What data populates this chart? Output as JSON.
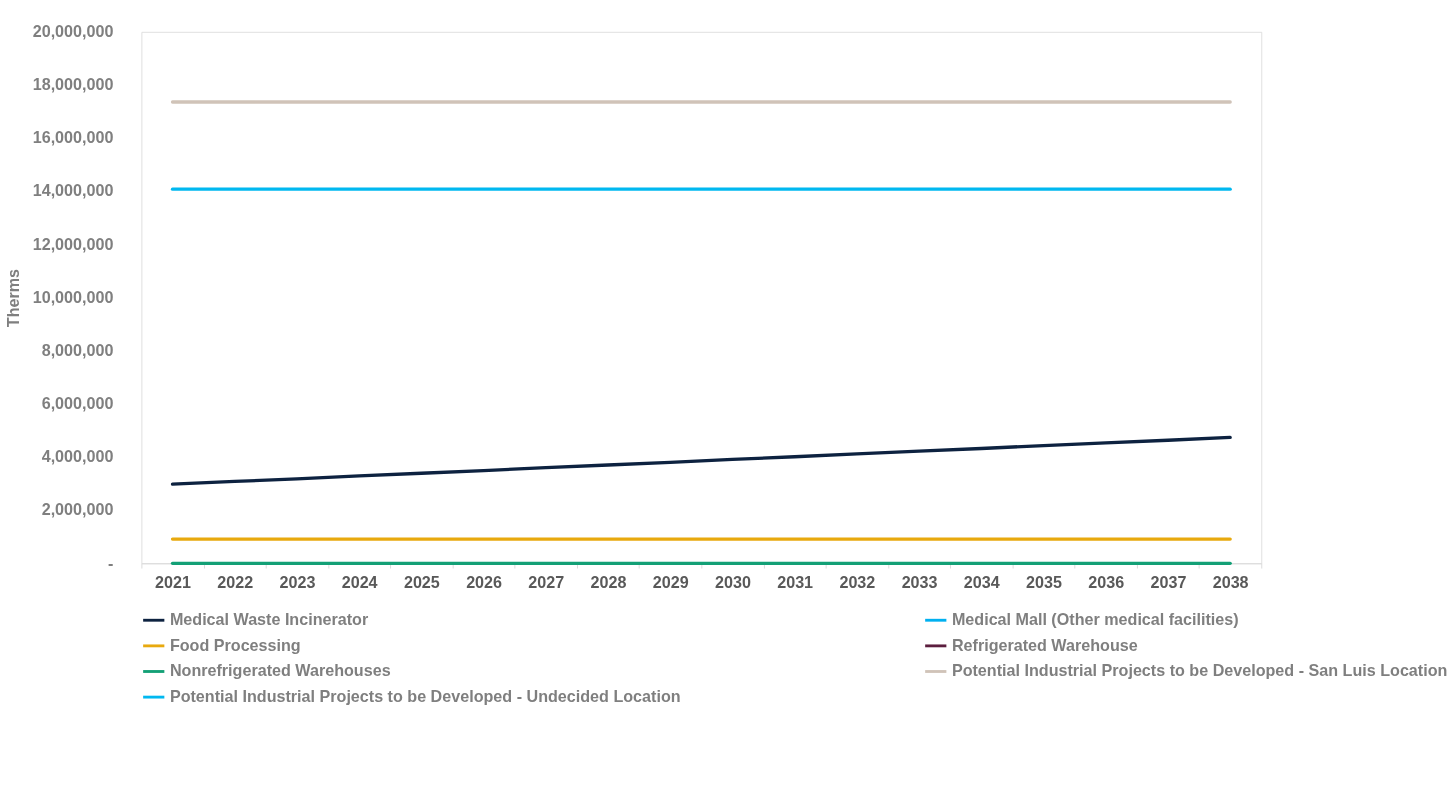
{
  "chart_data": {
    "type": "line",
    "ylabel": "Therms",
    "categories": [
      "2021",
      "2022",
      "2023",
      "2024",
      "2025",
      "2026",
      "2027",
      "2028",
      "2029",
      "2030",
      "2031",
      "2032",
      "2033",
      "2034",
      "2035",
      "2036",
      "2037",
      "2038"
    ],
    "ylim": [
      0,
      20000000
    ],
    "yticks": [
      {
        "value": 0,
        "label": "-"
      },
      {
        "value": 2000000,
        "label": "2,000,000"
      },
      {
        "value": 4000000,
        "label": "4,000,000"
      },
      {
        "value": 6000000,
        "label": "6,000,000"
      },
      {
        "value": 8000000,
        "label": "8,000,000"
      },
      {
        "value": 10000000,
        "label": "10,000,000"
      },
      {
        "value": 12000000,
        "label": "12,000,000"
      },
      {
        "value": 14000000,
        "label": "14,000,000"
      },
      {
        "value": 16000000,
        "label": "16,000,000"
      },
      {
        "value": 18000000,
        "label": "18,000,000"
      },
      {
        "value": 20000000,
        "label": "20,000,000"
      }
    ],
    "grid": false,
    "legend": "bottom",
    "marker": "none",
    "line_style": "solid",
    "series": [
      {
        "name": "Medical Waste Incinerator",
        "color": "#0d2240",
        "values": [
          2980000,
          3080000,
          3180000,
          3290000,
          3390000,
          3490000,
          3600000,
          3700000,
          3800000,
          3910000,
          4010000,
          4120000,
          4220000,
          4320000,
          4430000,
          4530000,
          4630000,
          4740000
        ]
      },
      {
        "name": "Medical Mall (Other medical facilities)",
        "color": "#00b0f0",
        "values": [
          null,
          null,
          null,
          null,
          null,
          null,
          null,
          null,
          null,
          null,
          null,
          null,
          null,
          null,
          null,
          null,
          null,
          null
        ]
      },
      {
        "name": "Food Processing",
        "color": "#e8a90e",
        "values": [
          910000,
          910000,
          910000,
          910000,
          910000,
          910000,
          910000,
          910000,
          910000,
          910000,
          910000,
          910000,
          910000,
          910000,
          910000,
          910000,
          910000,
          910000
        ]
      },
      {
        "name": "Refrigerated Warehouse",
        "color": "#5c1e3e",
        "values": [
          null,
          null,
          null,
          null,
          null,
          null,
          null,
          null,
          null,
          null,
          null,
          null,
          null,
          null,
          null,
          null,
          null,
          null
        ]
      },
      {
        "name": "Nonrefrigerated Warehouses",
        "color": "#13a076",
        "values": [
          0,
          0,
          0,
          0,
          0,
          0,
          0,
          0,
          0,
          0,
          0,
          0,
          0,
          0,
          0,
          0,
          0,
          0
        ]
      },
      {
        "name": "Potential Industrial Projects to be Developed - San Luis Location",
        "color": "#d0c3b8",
        "values": [
          17360000,
          17360000,
          17360000,
          17360000,
          17360000,
          17360000,
          17360000,
          17360000,
          17360000,
          17360000,
          17360000,
          17360000,
          17360000,
          17360000,
          17360000,
          17360000,
          17360000,
          17360000
        ]
      },
      {
        "name": "Potential Industrial Projects to be Developed - Undecided Location",
        "color": "#00b8f0",
        "values": [
          14080000,
          14080000,
          14080000,
          14080000,
          14080000,
          14080000,
          14080000,
          14080000,
          14080000,
          14080000,
          14080000,
          14080000,
          14080000,
          14080000,
          14080000,
          14080000,
          14080000,
          14080000
        ]
      }
    ]
  }
}
